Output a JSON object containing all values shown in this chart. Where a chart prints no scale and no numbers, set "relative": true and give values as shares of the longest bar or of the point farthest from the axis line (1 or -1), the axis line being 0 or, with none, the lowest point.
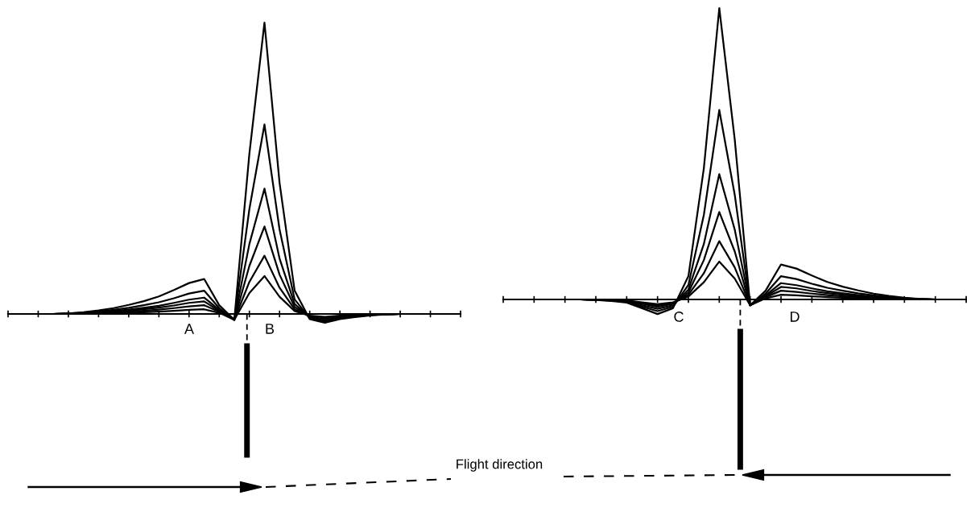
{
  "chart_data": [
    {
      "type": "line",
      "relative": true,
      "categories": [
        null,
        null,
        null,
        null,
        null,
        null,
        null,
        null,
        null,
        null,
        null,
        null,
        null,
        null,
        null,
        null,
        null,
        null,
        null,
        null,
        null,
        null,
        null,
        null,
        null,
        null,
        null,
        null,
        null,
        null,
        null
      ],
      "annotations": [
        "A",
        "B"
      ],
      "series": [
        {
          "color": "#000000",
          "values": [
            0,
            0,
            0,
            0,
            0.002,
            0.006,
            0.012,
            0.02,
            0.031,
            0.044,
            0.06,
            0.082,
            0.106,
            0.12,
            0.03,
            -0.02,
            0.55,
            1,
            0.45,
            0.08,
            -0.018,
            -0.03,
            -0.018,
            -0.011,
            -0.005,
            -0.002,
            0,
            0,
            0,
            0,
            0
          ]
        },
        {
          "color": "#000000",
          "values": [
            0,
            0,
            0,
            0,
            0.002,
            0.004,
            0.008,
            0.014,
            0.021,
            0.03,
            0.04,
            0.054,
            0.07,
            0.08,
            0.02,
            -0.02,
            0.36,
            0.65,
            0.29,
            0.05,
            -0.015,
            -0.025,
            -0.015,
            -0.009,
            -0.004,
            -0.001,
            0,
            0,
            0,
            0,
            0
          ]
        },
        {
          "color": "#000000",
          "values": [
            0,
            0,
            0,
            0,
            0.001,
            0.003,
            0.006,
            0.01,
            0.015,
            0.021,
            0.028,
            0.038,
            0.049,
            0.056,
            0.014,
            -0.02,
            0.24,
            0.43,
            0.19,
            0.034,
            -0.012,
            -0.02,
            -0.012,
            -0.007,
            -0.003,
            -0.001,
            0,
            0,
            0,
            0,
            0
          ]
        },
        {
          "color": "#000000",
          "values": [
            0,
            0,
            0,
            0,
            0.001,
            0.002,
            0.004,
            0.007,
            0.011,
            0.016,
            0.022,
            0.029,
            0.038,
            0.043,
            0.011,
            -0.02,
            0.165,
            0.3,
            0.135,
            0.024,
            -0.009,
            -0.015,
            -0.009,
            -0.005,
            -0.002,
            -0.001,
            0,
            0,
            0,
            0,
            0
          ]
        },
        {
          "color": "#000000",
          "values": [
            0,
            0,
            0,
            0,
            0.001,
            0.002,
            0.003,
            0.005,
            0.008,
            0.011,
            0.015,
            0.02,
            0.026,
            0.03,
            0.008,
            -0.02,
            0.11,
            0.2,
            0.09,
            0.016,
            -0.007,
            -0.012,
            -0.007,
            -0.004,
            -0.002,
            -0.001,
            0,
            0,
            0,
            0,
            0
          ]
        },
        {
          "color": "#000000",
          "values": [
            0,
            0,
            0,
            0,
            0,
            0.001,
            0.002,
            0.003,
            0.004,
            0.006,
            0.008,
            0.011,
            0.014,
            0.016,
            0.004,
            -0.02,
            0.072,
            0.13,
            0.059,
            0.01,
            -0.006,
            -0.01,
            -0.006,
            -0.004,
            -0.002,
            -0.001,
            0,
            0,
            0,
            0,
            0
          ]
        }
      ]
    },
    {
      "type": "line",
      "relative": true,
      "categories": [
        null,
        null,
        null,
        null,
        null,
        null,
        null,
        null,
        null,
        null,
        null,
        null,
        null,
        null,
        null,
        null,
        null,
        null,
        null,
        null,
        null,
        null,
        null,
        null,
        null,
        null,
        null,
        null,
        null,
        null,
        null
      ],
      "annotations": [
        "C",
        "D",
        "Flight direction"
      ],
      "series": [
        {
          "color": "#000000",
          "values": [
            0,
            0,
            0,
            0,
            0,
            0,
            -0.002,
            -0.005,
            -0.011,
            -0.03,
            -0.05,
            -0.03,
            0.08,
            0.45,
            1,
            0.55,
            -0.02,
            0.03,
            0.12,
            0.106,
            0.082,
            0.06,
            0.044,
            0.031,
            0.02,
            0.012,
            0.006,
            0.002,
            0,
            0,
            0
          ]
        },
        {
          "color": "#000000",
          "values": [
            0,
            0,
            0,
            0,
            0,
            0,
            -0.001,
            -0.004,
            -0.009,
            -0.025,
            -0.04,
            -0.025,
            0.05,
            0.29,
            0.65,
            0.36,
            -0.02,
            0.02,
            0.08,
            0.07,
            0.054,
            0.04,
            0.03,
            0.021,
            0.014,
            0.008,
            0.004,
            0.002,
            0,
            0,
            0
          ]
        },
        {
          "color": "#000000",
          "values": [
            0,
            0,
            0,
            0,
            0,
            0,
            -0.001,
            -0.003,
            -0.007,
            -0.02,
            -0.032,
            -0.02,
            0.034,
            0.19,
            0.43,
            0.24,
            -0.02,
            0.014,
            0.056,
            0.049,
            0.038,
            0.028,
            0.021,
            0.015,
            0.01,
            0.006,
            0.003,
            0.001,
            0,
            0,
            0
          ]
        },
        {
          "color": "#000000",
          "values": [
            0,
            0,
            0,
            0,
            0,
            0,
            -0.001,
            -0.002,
            -0.005,
            -0.015,
            -0.025,
            -0.015,
            0.024,
            0.135,
            0.3,
            0.165,
            -0.02,
            0.011,
            0.043,
            0.038,
            0.029,
            0.022,
            0.016,
            0.011,
            0.007,
            0.004,
            0.002,
            0.001,
            0,
            0,
            0
          ]
        },
        {
          "color": "#000000",
          "values": [
            0,
            0,
            0,
            0,
            0,
            0,
            -0.001,
            -0.002,
            -0.004,
            -0.012,
            -0.02,
            -0.012,
            0.016,
            0.09,
            0.2,
            0.11,
            -0.02,
            0.008,
            0.03,
            0.026,
            0.02,
            0.015,
            0.011,
            0.008,
            0.005,
            0.003,
            0.002,
            0.001,
            0,
            0,
            0
          ]
        },
        {
          "color": "#000000",
          "values": [
            0,
            0,
            0,
            0,
            0,
            0,
            -0.001,
            -0.002,
            -0.004,
            -0.01,
            -0.016,
            -0.01,
            0.01,
            0.059,
            0.13,
            0.072,
            -0.02,
            0.004,
            0.016,
            0.014,
            0.011,
            0.008,
            0.006,
            0.004,
            0.003,
            0.002,
            0.001,
            0,
            0,
            0,
            0
          ]
        }
      ]
    }
  ]
}
